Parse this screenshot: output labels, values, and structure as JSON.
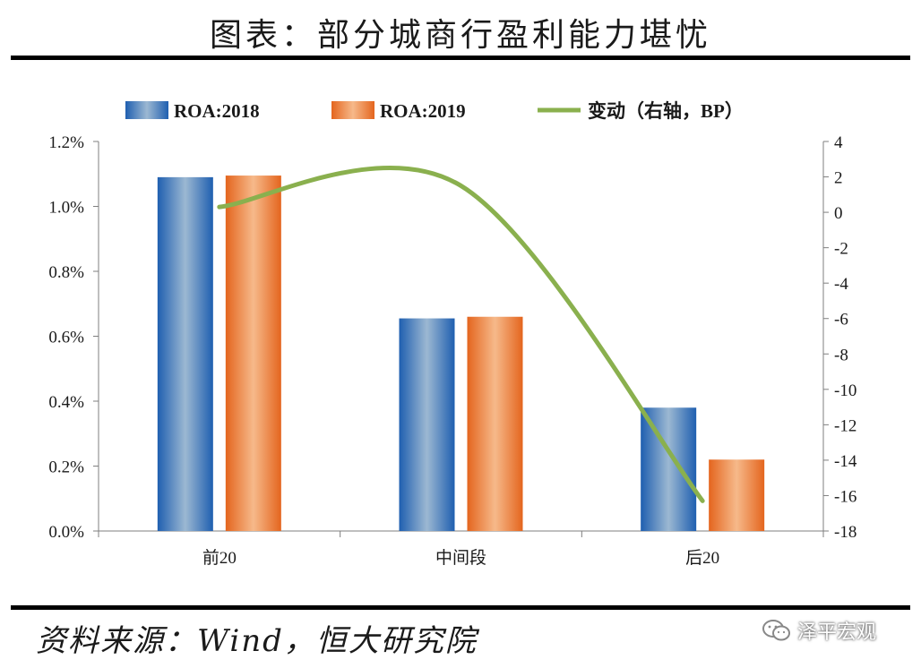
{
  "header": {
    "title": "图表：部分城商行盈利能力堪忧"
  },
  "footer": {
    "source": "资料来源：Wind，恒大研究院",
    "watermark": "泽平宏观"
  },
  "chart_data": {
    "type": "bar",
    "categories": [
      "前20",
      "中间段",
      "后20"
    ],
    "series": [
      {
        "name": "ROA:2018",
        "values": [
          1.09,
          0.655,
          0.38
        ],
        "axis": "left",
        "color": "#2e6db8"
      },
      {
        "name": "ROA:2019",
        "values": [
          1.095,
          0.66,
          0.22
        ],
        "axis": "left",
        "color": "#e8762e"
      },
      {
        "name": "变动（右轴，BP）",
        "type": "line",
        "values": [
          0.3,
          1.5,
          -16.3
        ],
        "axis": "right",
        "color": "#8ab04e"
      }
    ],
    "left_axis": {
      "ylim": [
        0,
        1.2
      ],
      "ticks": [
        "0.0%",
        "0.2%",
        "0.4%",
        "0.6%",
        "0.8%",
        "1.0%",
        "1.2%"
      ]
    },
    "right_axis": {
      "ylim": [
        -18,
        4
      ],
      "ticks": [
        "-18",
        "-16",
        "-14",
        "-12",
        "-10",
        "-8",
        "-6",
        "-4",
        "-2",
        "0",
        "2",
        "4"
      ]
    },
    "legend": [
      "ROA:2018",
      "ROA:2019",
      "变动（右轴，BP）"
    ],
    "legend_placement": "top"
  }
}
